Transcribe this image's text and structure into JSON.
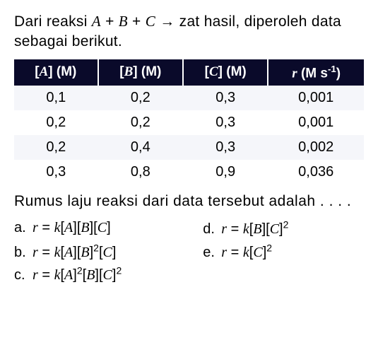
{
  "intro_html": "Dari reaksi <span class='ital'>A</span> + <span class='ital'>B</span> + <span class='ital'>C</span> &rarr; zat hasil, diperoleh data sebagai berikut.",
  "table": {
    "headers": [
      "[<span class='ital'>A</span>] (M)",
      "[<span class='ital'>B</span>] (M)",
      "[<span class='ital'>C</span>] (M)",
      "<span class='ital'>r</span> (M s<span class='sup'>-1</span>)"
    ],
    "rows": [
      [
        "0,1",
        "0,2",
        "0,3",
        "0,001"
      ],
      [
        "0,2",
        "0,2",
        "0,3",
        "0,001"
      ],
      [
        "0,2",
        "0,4",
        "0,3",
        "0,002"
      ],
      [
        "0,3",
        "0,8",
        "0,9",
        "0,036"
      ]
    ],
    "header_bg": "#0a0a2a",
    "header_fg": "#ffffff",
    "row_bg_light": "#f5f6fa",
    "row_bg_white": "#ffffff"
  },
  "prompt": "Rumus laju reaksi dari data tersebut adalah . . . .",
  "options": {
    "a": "<span class='ital'>r</span> = <span class='ital'>k</span>[<span class='ital'>A</span>][<span class='ital'>B</span>][<span class='ital'>C</span>]",
    "b": "<span class='ital'>r</span> = <span class='ital'>k</span>[<span class='ital'>A</span>][<span class='ital'>B</span>]<span class='sup'>2</span>[<span class='ital'>C</span>]",
    "c": "<span class='ital'>r</span> = <span class='ital'>k</span>[<span class='ital'>A</span>]<span class='sup'>2</span>[<span class='ital'>B</span>][<span class='ital'>C</span>]<span class='sup'>2</span>",
    "d": "<span class='ital'>r</span> = <span class='ital'>k</span>[<span class='ital'>B</span>][<span class='ital'>C</span>]<span class='sup'>2</span>",
    "e": "<span class='ital'>r</span> = <span class='ital'>k</span>[<span class='ital'>C</span>]<span class='sup'>2</span>"
  }
}
